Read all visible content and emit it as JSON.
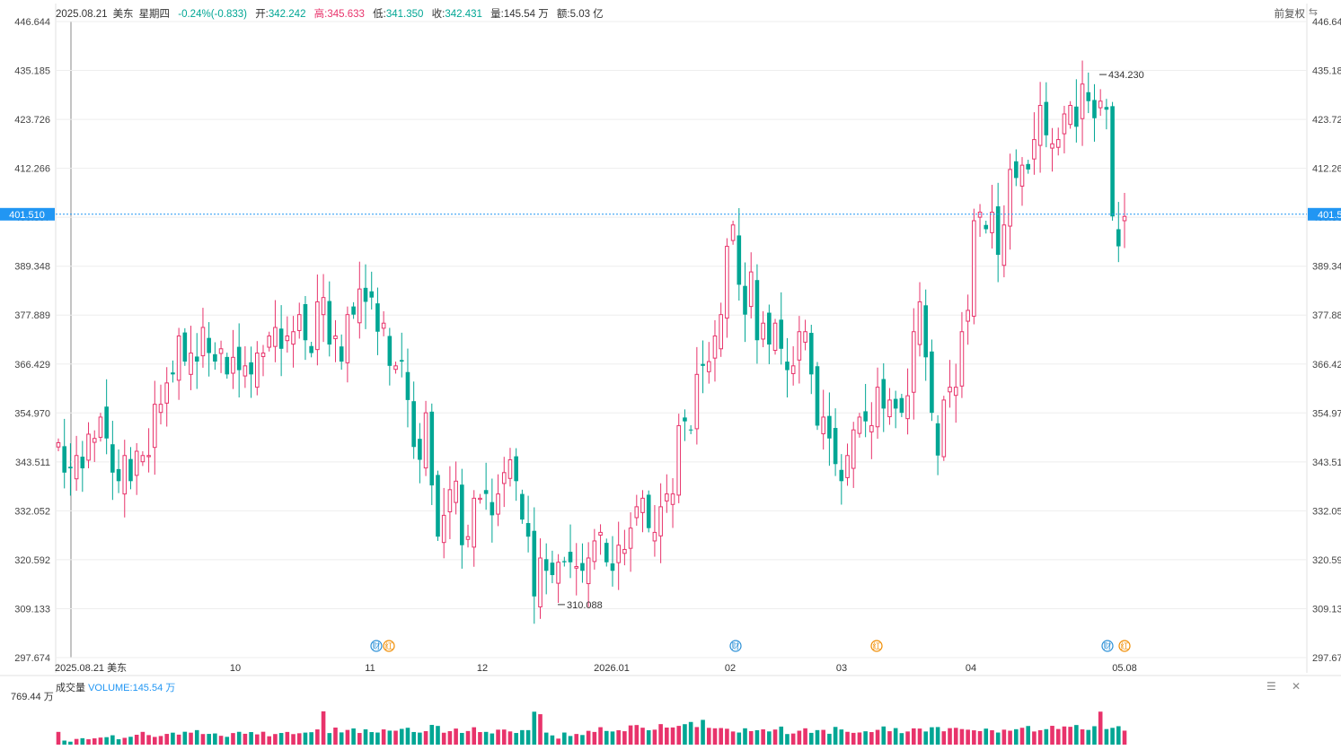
{
  "header": {
    "date": "2025.08.21",
    "market": "美东",
    "weekday": "星期四",
    "change": "-0.24%(-0.833)",
    "open_label": "开:",
    "open": "342.242",
    "high_label": "高:",
    "high": "345.633",
    "low_label": "低:",
    "low": "341.350",
    "close_label": "收:",
    "close": "342.431",
    "volume_label": "量:",
    "volume": "145.54 万",
    "amount_label": "额:",
    "amount": "5.03 亿",
    "adjust_label": "前复权",
    "adjust_icon": "swap-icon"
  },
  "colors": {
    "up": "#e8336b",
    "down": "#00a694",
    "crosshair": "#2196f3",
    "grid": "#eeeeee",
    "earnings_badge": "#2a8fd6",
    "dividend_badge": "#f08c00"
  },
  "chart_data": {
    "type": "candlestick",
    "y_ticks": [
      "446.644",
      "435.185",
      "423.726",
      "412.266",
      "400.807",
      "389.348",
      "377.889",
      "366.429",
      "354.970",
      "343.511",
      "332.052",
      "320.592",
      "309.133",
      "297.674"
    ],
    "ylim": [
      297.674,
      446.644
    ],
    "x_labels": [
      "2025.08.21 美东",
      "10",
      "11",
      "12",
      "2026.01",
      "02",
      "03",
      "04",
      "05.08"
    ],
    "crosshair_price": "401.510",
    "crosshair_price_right": "401.5",
    "max_label": "434.230",
    "min_label": "310.088",
    "events": [
      {
        "label": "财",
        "kind": "earnings"
      },
      {
        "label": "红",
        "kind": "dividend"
      },
      {
        "label": "财",
        "kind": "earnings"
      },
      {
        "label": "红",
        "kind": "dividend"
      },
      {
        "label": "财",
        "kind": "earnings"
      },
      {
        "label": "红",
        "kind": "dividend"
      }
    ],
    "closes": [
      348,
      341,
      342,
      345,
      342,
      350,
      349,
      354,
      349,
      341,
      339,
      345,
      339,
      346,
      345,
      345,
      357,
      357,
      362,
      364,
      373,
      367,
      369,
      367,
      375,
      369,
      367,
      370,
      364,
      368,
      365,
      366,
      364,
      369,
      369,
      373,
      375,
      370,
      373,
      374,
      378,
      372,
      369,
      381,
      382,
      371,
      373,
      367,
      378,
      378,
      384,
      381,
      382,
      374,
      376,
      366,
      366,
      367,
      358,
      347,
      344,
      355,
      338,
      326,
      331,
      337,
      339,
      324,
      326,
      335,
      335,
      336,
      331,
      336,
      341,
      344,
      339,
      330,
      326,
      312,
      321,
      318,
      317,
      320,
      320,
      320,
      319,
      318,
      321,
      325,
      327,
      320,
      318,
      324,
      323,
      328,
      333,
      335,
      328,
      327,
      333,
      336,
      336,
      352,
      353,
      351,
      364,
      366,
      367,
      373,
      378,
      394,
      399,
      385,
      378,
      388,
      372,
      376,
      371,
      376,
      370,
      365,
      366,
      374,
      374,
      364,
      352,
      354,
      349,
      343,
      339,
      345,
      351,
      354,
      353,
      352,
      361,
      356,
      358,
      356,
      355,
      359,
      374,
      381,
      368,
      355,
      345,
      358,
      361,
      361,
      374,
      379,
      400,
      402,
      398,
      402,
      392,
      399,
      412,
      410,
      413,
      412,
      419,
      427,
      420,
      418,
      419,
      425,
      427,
      422,
      432,
      428,
      424,
      428,
      426,
      401,
      394,
      401
    ],
    "volumes": [
      195,
      62,
      45,
      87,
      98,
      82,
      96,
      108,
      114,
      143,
      82,
      104,
      120,
      151,
      195,
      146,
      118,
      132,
      164,
      183,
      153,
      197,
      183,
      222,
      162,
      164,
      171,
      135,
      119,
      177,
      196,
      166,
      192,
      157,
      197,
      128,
      162,
      178,
      194,
      161,
      174,
      184,
      190,
      233,
      510,
      177,
      261,
      187,
      225,
      248,
      178,
      234,
      192,
      185,
      233,
      214,
      213,
      241,
      258,
      193,
      184,
      206,
      302,
      286,
      182,
      206,
      246,
      179,
      208,
      266,
      192,
      195,
      171,
      229,
      231,
      202,
      178,
      222,
      222,
      504,
      466,
      184,
      141,
      92,
      185,
      132,
      163,
      147,
      211,
      194,
      267,
      209,
      201,
      221,
      205,
      294,
      300,
      259,
      220,
      229,
      314,
      261,
      263,
      287,
      313,
      347,
      269,
      379,
      257,
      250,
      254,
      243,
      201,
      185,
      250,
      207,
      221,
      234,
      202,
      231,
      276,
      162,
      170,
      213,
      250,
      180,
      222,
      226,
      166,
      271,
      232,
      196,
      180,
      186,
      204,
      192,
      226,
      278,
      205,
      253,
      176,
      201,
      249,
      246,
      201,
      266,
      269,
      204,
      252,
      257,
      238,
      229,
      219,
      207,
      245,
      220,
      185,
      229,
      213,
      236,
      258,
      285,
      201,
      221,
      237,
      288,
      239,
      278,
      273,
      300,
      234,
      225,
      282,
      505,
      238,
      257,
      282,
      214
    ]
  },
  "volume_panel": {
    "title": "成交量",
    "indicator": "VOLUME:145.54 万",
    "max_label": "769.44 万",
    "settings_icon": "settings-icon",
    "close_icon": "close-icon"
  }
}
